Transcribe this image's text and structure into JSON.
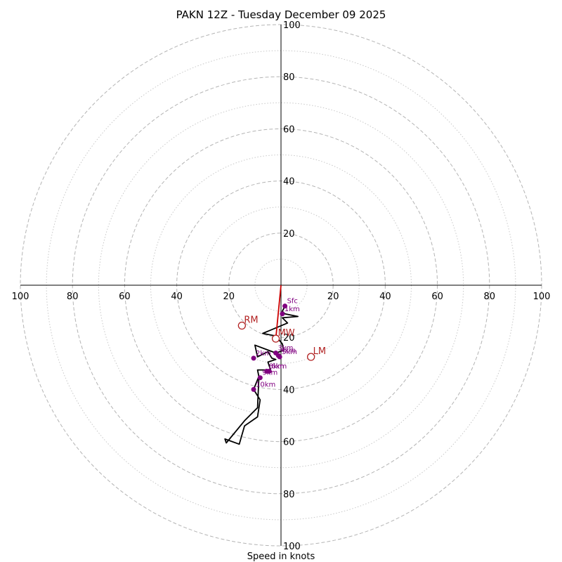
{
  "chart_data": {
    "type": "hodograph",
    "title": "PAKN 12Z - Tuesday December 09 2025",
    "xlabel": "Speed in knots",
    "speed_max": 100,
    "major_rings": [
      20,
      40,
      60,
      80,
      100
    ],
    "minor_rings": [
      10,
      30,
      50,
      70,
      90
    ],
    "tick_labels": [
      "20",
      "40",
      "60",
      "80",
      "100"
    ],
    "grid": true,
    "trace_color": "#000000",
    "height_marker_color": "#800080",
    "motion_color": "#b22222",
    "mean_wind_vector_color": "#cc0000",
    "hodograph_trace": [
      {
        "u": 1.5,
        "v": -8
      },
      {
        "u": 0.5,
        "v": -10
      },
      {
        "u": 1.5,
        "v": -11
      },
      {
        "u": 6.5,
        "v": -12
      },
      {
        "u": 0.5,
        "v": -12.5
      },
      {
        "u": 2.5,
        "v": -14.5
      },
      {
        "u": -7,
        "v": -18.5
      },
      {
        "u": -2,
        "v": -19.5
      },
      {
        "u": 0.5,
        "v": -22.5
      },
      {
        "u": 1,
        "v": -25
      },
      {
        "u": -2,
        "v": -26
      },
      {
        "u": -10,
        "v": -23
      },
      {
        "u": -9,
        "v": -27.5
      },
      {
        "u": -5,
        "v": -25.5
      },
      {
        "u": -3.5,
        "v": -28
      },
      {
        "u": -2,
        "v": -28.5
      },
      {
        "u": -5,
        "v": -29.5
      },
      {
        "u": -4,
        "v": -32.5
      },
      {
        "u": -9,
        "v": -32.5
      },
      {
        "u": -8.5,
        "v": -35
      },
      {
        "u": -10.5,
        "v": -40
      },
      {
        "u": -8,
        "v": -44
      },
      {
        "u": -9,
        "v": -50.5
      },
      {
        "u": -14,
        "v": -54
      },
      {
        "u": -16,
        "v": -61
      },
      {
        "u": -21.5,
        "v": -59
      },
      {
        "u": -21,
        "v": -60.5
      },
      {
        "u": -14,
        "v": -52
      },
      {
        "u": -9,
        "v": -47
      },
      {
        "u": -8.5,
        "v": -35.5
      }
    ],
    "height_markers": [
      {
        "label": "Sfc",
        "u": 1.5,
        "v": -8
      },
      {
        "label": "1km",
        "u": 0.5,
        "v": -11
      },
      {
        "label": "3km",
        "u": -2,
        "v": -26
      },
      {
        "label": "4km",
        "u": -1,
        "v": -27
      },
      {
        "label": "2km",
        "u": -10.5,
        "v": -28
      },
      {
        "label": "5km",
        "u": -0.5,
        "v": -27.5
      },
      {
        "label": "6km",
        "u": -4.5,
        "v": -33
      },
      {
        "label": "8km",
        "u": -5.5,
        "v": -33
      },
      {
        "label": "9km",
        "u": -8,
        "v": -35.5
      },
      {
        "label": "10km",
        "u": -10.5,
        "v": -40
      }
    ],
    "storm_motion": [
      {
        "label": "RM",
        "u": -15,
        "v": -15.5
      },
      {
        "label": "MW",
        "u": -2,
        "v": -20.5
      },
      {
        "label": "LM",
        "u": 11.5,
        "v": -27.5
      }
    ],
    "mean_wind_vector": {
      "u": -2,
      "v": -20.5
    }
  }
}
